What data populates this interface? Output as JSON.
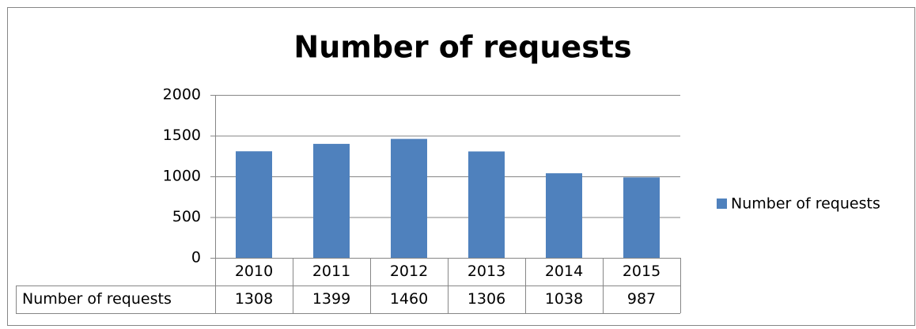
{
  "chart_data": {
    "type": "bar",
    "title": "Number of requests",
    "categories": [
      "2010",
      "2011",
      "2012",
      "2013",
      "2014",
      "2015"
    ],
    "series": [
      {
        "name": "Number of requests",
        "color": "#4f81bd",
        "values": [
          1308,
          1399,
          1460,
          1306,
          1038,
          987
        ]
      }
    ],
    "ylim": [
      0,
      2000
    ],
    "yticks": [
      0,
      500,
      1000,
      1500,
      2000
    ],
    "grid": true,
    "legend": "right",
    "data_table": true
  }
}
